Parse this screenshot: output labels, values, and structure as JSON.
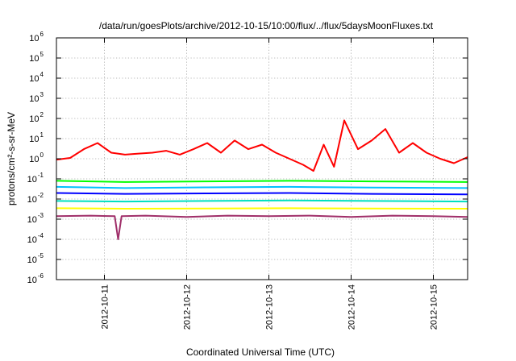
{
  "chart_data": {
    "type": "line",
    "title": "/data/run/goesPlots/archive/2012-10-15/10:00/flux/../flux/5daysMoonFluxes.txt",
    "xlabel": "Coordinated Universal Time (UTC)",
    "ylabel": "protons/cm²-s-sr-MeV",
    "yscale": "log",
    "ylim": [
      1e-06,
      1000000.0
    ],
    "xlim": [
      "2012-10-10T10:00",
      "2012-10-15T10:00"
    ],
    "x_ticks": [
      "2012-10-11",
      "2012-10-12",
      "2012-10-13",
      "2012-10-14",
      "2012-10-15"
    ],
    "y_ticks": [
      {
        "base": "10",
        "exp": "-6"
      },
      {
        "base": "10",
        "exp": "-5"
      },
      {
        "base": "10",
        "exp": "-4"
      },
      {
        "base": "10",
        "exp": "-3"
      },
      {
        "base": "10",
        "exp": "-2"
      },
      {
        "base": "10",
        "exp": "-1"
      },
      {
        "base": "10",
        "exp": "0"
      },
      {
        "base": "10",
        "exp": "1"
      },
      {
        "base": "10",
        "exp": "2"
      },
      {
        "base": "10",
        "exp": "3"
      },
      {
        "base": "10",
        "exp": "4"
      },
      {
        "base": "10",
        "exp": "5"
      },
      {
        "base": "10",
        "exp": "6"
      }
    ],
    "grid": true,
    "legend": "none",
    "series": [
      {
        "color": "#ff0000",
        "x": [
          "2012-10-10T10:00",
          "2012-10-10T14:00",
          "2012-10-10T18:00",
          "2012-10-10T22:00",
          "2012-10-11T02:00",
          "2012-10-11T06:00",
          "2012-10-11T10:00",
          "2012-10-11T14:00",
          "2012-10-11T18:00",
          "2012-10-11T22:00",
          "2012-10-12T02:00",
          "2012-10-12T06:00",
          "2012-10-12T10:00",
          "2012-10-12T14:00",
          "2012-10-12T18:00",
          "2012-10-12T22:00",
          "2012-10-13T02:00",
          "2012-10-13T06:00",
          "2012-10-13T10:00",
          "2012-10-13T13:00",
          "2012-10-13T16:00",
          "2012-10-13T19:00",
          "2012-10-13T22:00",
          "2012-10-14T02:00",
          "2012-10-14T06:00",
          "2012-10-14T10:00",
          "2012-10-14T14:00",
          "2012-10-14T18:00",
          "2012-10-14T22:00",
          "2012-10-15T02:00",
          "2012-10-15T06:00",
          "2012-10-15T10:00"
        ],
        "y": [
          0.9,
          1.1,
          3,
          6,
          2,
          1.6,
          1.8,
          2,
          2.5,
          1.6,
          3,
          6,
          2,
          8,
          3,
          5,
          2,
          1,
          0.5,
          0.25,
          5,
          0.4,
          80,
          3,
          8,
          30,
          2,
          6,
          2,
          1,
          0.6,
          1.2
        ]
      },
      {
        "color": "#00ff00",
        "x": [
          "2012-10-10T10:00",
          "2012-10-11T06:00",
          "2012-10-12T06:00",
          "2012-10-13T06:00",
          "2012-10-14T06:00",
          "2012-10-15T10:00"
        ],
        "y": [
          0.08,
          0.07,
          0.075,
          0.08,
          0.075,
          0.07
        ]
      },
      {
        "color": "#00c0ff",
        "x": [
          "2012-10-10T10:00",
          "2012-10-11T06:00",
          "2012-10-12T06:00",
          "2012-10-13T06:00",
          "2012-10-14T06:00",
          "2012-10-15T10:00"
        ],
        "y": [
          0.04,
          0.035,
          0.038,
          0.04,
          0.037,
          0.035
        ]
      },
      {
        "color": "#0000ff",
        "x": [
          "2012-10-10T10:00",
          "2012-10-11T06:00",
          "2012-10-12T06:00",
          "2012-10-13T06:00",
          "2012-10-14T06:00",
          "2012-10-15T10:00"
        ],
        "y": [
          0.02,
          0.018,
          0.019,
          0.02,
          0.018,
          0.017
        ]
      },
      {
        "color": "#00e0c0",
        "x": [
          "2012-10-10T10:00",
          "2012-10-11T06:00",
          "2012-10-12T06:00",
          "2012-10-13T06:00",
          "2012-10-14T06:00",
          "2012-10-15T10:00"
        ],
        "y": [
          0.008,
          0.0075,
          0.008,
          0.0085,
          0.008,
          0.0075
        ]
      },
      {
        "color": "#ffff00",
        "x": [
          "2012-10-10T10:00",
          "2012-10-11T06:00",
          "2012-10-12T06:00",
          "2012-10-13T06:00",
          "2012-10-14T06:00",
          "2012-10-15T10:00"
        ],
        "y": [
          0.0035,
          0.0033,
          0.0034,
          0.0035,
          0.0034,
          0.0033
        ]
      },
      {
        "color": "#a0306a",
        "x": [
          "2012-10-10T10:00",
          "2012-10-10T20:00",
          "2012-10-11T03:00",
          "2012-10-11T04:00",
          "2012-10-11T05:00",
          "2012-10-11T12:00",
          "2012-10-12T00:00",
          "2012-10-12T12:00",
          "2012-10-13T00:00",
          "2012-10-13T12:00",
          "2012-10-14T00:00",
          "2012-10-14T12:00",
          "2012-10-15T00:00",
          "2012-10-15T10:00"
        ],
        "y": [
          0.0014,
          0.0015,
          0.0014,
          0.0001,
          0.0014,
          0.0015,
          0.0013,
          0.0015,
          0.0014,
          0.0015,
          0.0013,
          0.0015,
          0.0014,
          0.0013
        ]
      }
    ]
  }
}
